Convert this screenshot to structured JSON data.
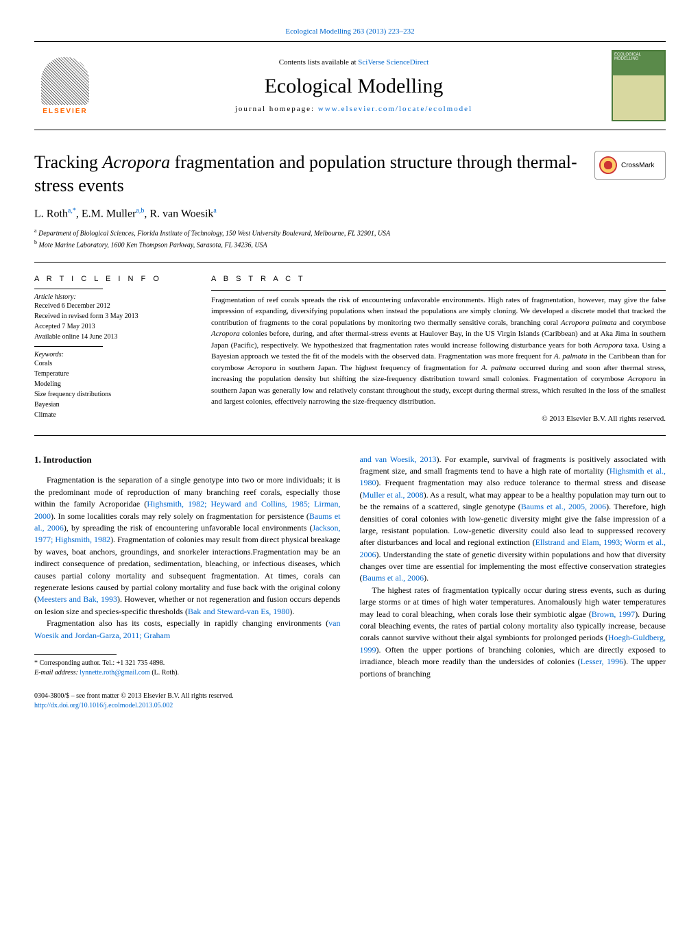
{
  "topLink": "Ecological Modelling 263 (2013) 223–232",
  "header": {
    "contentsPrefix": "Contents lists available at ",
    "contentsLink": "SciVerse ScienceDirect",
    "journalName": "Ecological Modelling",
    "homepagePrefix": "journal homepage: ",
    "homepageLink": "www.elsevier.com/locate/ecolmodel",
    "elsevierLabel": "ELSEVIER",
    "coverLabel": "ECOLOGICAL MODELLING"
  },
  "crossmark": "CrossMark",
  "title": "Tracking <em>Acropora</em> fragmentation and population structure through thermal-stress events",
  "authors": "L. Roth<sup>a,*</sup>, E.M. Muller<sup>a,b</sup>, R. van Woesik<sup>a</sup>",
  "affiliations": [
    "<sup>a</sup> Department of Biological Sciences, Florida Institute of Technology, 150 West University Boulevard, Melbourne, FL 32901, USA",
    "<sup>b</sup> Mote Marine Laboratory, 1600 Ken Thompson Parkway, Sarasota, FL 34236, USA"
  ],
  "articleInfo": {
    "heading": "A R T I C L E   I N F O",
    "historyLabel": "Article history:",
    "history": [
      "Received 6 December 2012",
      "Received in revised form 3 May 2013",
      "Accepted 7 May 2013",
      "Available online 14 June 2013"
    ],
    "keywordsLabel": "Keywords:",
    "keywords": [
      "Corals",
      "Temperature",
      "Modeling",
      "Size frequency distributions",
      "Bayesian",
      "Climate"
    ]
  },
  "abstract": {
    "heading": "A B S T R A C T",
    "text": "Fragmentation of reef corals spreads the risk of encountering unfavorable environments. High rates of fragmentation, however, may give the false impression of expanding, diversifying populations when instead the populations are simply cloning. We developed a discrete model that tracked the contribution of fragments to the coral populations by monitoring two thermally sensitive corals, branching coral <em>Acropora palmata</em> and corymbose <em>Acropora</em> colonies before, during, and after thermal-stress events at Haulover Bay, in the US Virgin Islands (Caribbean) and at Aka Jima in southern Japan (Pacific), respectively. We hypothesized that fragmentation rates would increase following disturbance years for both <em>Acropora</em> taxa. Using a Bayesian approach we tested the fit of the models with the observed data. Fragmentation was more frequent for <em>A. palmata</em> in the Caribbean than for corymbose <em>Acropora</em> in southern Japan. The highest frequency of fragmentation for <em>A. palmata</em> occurred during and soon after thermal stress, increasing the population density but shifting the size-frequency distribution toward small colonies. Fragmentation of corymbose <em>Acropora</em> in southern Japan was generally low and relatively constant throughout the study, except during thermal stress, which resulted in the loss of the smallest and largest colonies, effectively narrowing the size-frequency distribution.",
    "copyright": "© 2013 Elsevier B.V. All rights reserved."
  },
  "body": {
    "sectionHeading": "1.  Introduction",
    "leftParas": [
      "Fragmentation is the separation of a single genotype into two or more individuals; it is the predominant mode of reproduction of many branching reef corals, especially those within the family Acroporidae (<span class=\"ref\">Highsmith, 1982; Heyward and Collins, 1985; Lirman, 2000</span>). In some localities corals may rely solely on fragmentation for persistence (<span class=\"ref\">Baums et al., 2006</span>), by spreading the risk of encountering unfavorable local environments (<span class=\"ref\">Jackson, 1977; Highsmith, 1982</span>). Fragmentation of colonies may result from direct physical breakage by waves, boat anchors, groundings, and snorkeler interactions.Fragmentation may be an indirect consequence of predation, sedimentation, bleaching, or infectious diseases, which causes partial colony mortality and subsequent fragmentation. At times, corals can regenerate lesions caused by partial colony mortality and fuse back with the original colony (<span class=\"ref\">Meesters and Bak, 1993</span>). However, whether or not regeneration and fusion occurs depends on lesion size and species-specific thresholds (<span class=\"ref\">Bak and Steward-van Es, 1980</span>).",
      "Fragmentation also has its costs, especially in rapidly changing environments (<span class=\"ref\">van Woesik and Jordan-Garza, 2011; Graham</span>"
    ],
    "rightParas": [
      "<span class=\"ref\">and van Woesik, 2013</span>). For example, survival of fragments is positively associated with fragment size, and small fragments tend to have a high rate of mortality (<span class=\"ref\">Highsmith et al., 1980</span>). Frequent fragmentation may also reduce tolerance to thermal stress and disease (<span class=\"ref\">Muller et al., 2008</span>). As a result, what may appear to be a healthy population may turn out to be the remains of a scattered, single genotype (<span class=\"ref\">Baums et al., 2005, 2006</span>). Therefore, high densities of coral colonies with low-genetic diversity might give the false impression of a large, resistant population. Low-genetic diversity could also lead to suppressed recovery after disturbances and local and regional extinction (<span class=\"ref\">Ellstrand and Elam, 1993; Worm et al., 2006</span>). Understanding the state of genetic diversity within populations and how that diversity changes over time are essential for implementing the most effective conservation strategies (<span class=\"ref\">Baums et al., 2006</span>).",
      "The highest rates of fragmentation typically occur during stress events, such as during large storms or at times of high water temperatures. Anomalously high water temperatures may lead to coral bleaching, when corals lose their symbiotic algae (<span class=\"ref\">Brown, 1997</span>). During coral bleaching events, the rates of partial colony mortality also typically increase, because corals cannot survive without their algal symbionts for prolonged periods (<span class=\"ref\">Hoegh-Guldberg, 1999</span>). Often the upper portions of branching colonies, which are directly exposed to irradiance, bleach more readily than the undersides of colonies (<span class=\"ref\">Lesser, 1996</span>). The upper portions of branching"
    ]
  },
  "footnote": {
    "corresponding": "* Corresponding author. Tel.: +1 321 735 4898.",
    "emailLabel": "E-mail address: ",
    "email": "lynnette.roth@gmail.com",
    "emailSuffix": " (L. Roth)."
  },
  "bottom": {
    "line1": "0304-3800/$ – see front matter © 2013 Elsevier B.V. All rights reserved.",
    "doi": "http://dx.doi.org/10.1016/j.ecolmodel.2013.05.002"
  },
  "colors": {
    "link": "#0066cc",
    "elsevierOrange": "#ff6600",
    "coverGreen": "#4a7a3a"
  }
}
